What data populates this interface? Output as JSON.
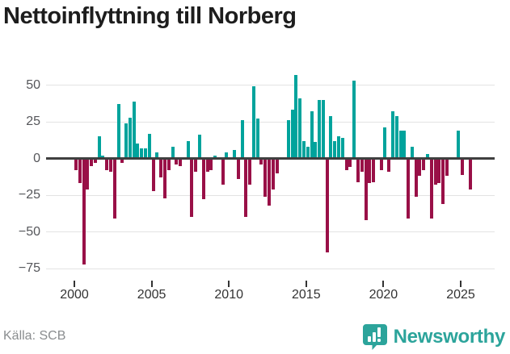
{
  "title": "Nettoinflyttning till Norberg",
  "source": "Källa: SCB",
  "brand": {
    "name": "Newsworthy",
    "color": "#2ca49b"
  },
  "chart_data": {
    "type": "bar",
    "title": "Nettoinflyttning till Norberg",
    "xlabel": "",
    "ylabel": "",
    "frequency": "quarterly",
    "start_period": "2000Q1",
    "end_period": "2025Q3",
    "x_ticks": [
      "2000",
      "2005",
      "2010",
      "2015",
      "2020",
      "2025"
    ],
    "y_ticks": [
      {
        "value": 50,
        "label": "50"
      },
      {
        "value": 25,
        "label": "25"
      },
      {
        "value": 0,
        "label": "0"
      },
      {
        "value": -25,
        "label": "−25"
      },
      {
        "value": -50,
        "label": "−50"
      },
      {
        "value": -75,
        "label": "−75"
      }
    ],
    "ylim": [
      -80,
      60
    ],
    "grid": true,
    "legend": "none",
    "colors": {
      "positive": "#00a39c",
      "negative": "#991047"
    },
    "values": [
      -8,
      -17,
      -72,
      -21,
      -5,
      -3,
      15,
      2,
      -8,
      -9,
      -41,
      37,
      -3,
      24,
      28,
      39,
      10,
      7,
      7,
      17,
      -22,
      4,
      -13,
      -27,
      -8,
      8,
      -4,
      -5,
      0,
      12,
      -40,
      -9,
      16,
      -28,
      -9,
      -8,
      2,
      0,
      -18,
      4,
      0,
      6,
      -14,
      26,
      -40,
      -18,
      49,
      27,
      -4,
      -26,
      -32,
      -21,
      -10,
      0,
      0,
      26,
      33,
      57,
      41,
      12,
      8,
      32,
      11,
      40,
      40,
      -64,
      29,
      12,
      15,
      14,
      -8,
      -6,
      53,
      -16,
      -9,
      -42,
      -17,
      -16,
      0,
      -8,
      21,
      -9,
      32,
      29,
      19,
      19,
      -41,
      8,
      -26,
      -12,
      -8,
      3,
      -41,
      -18,
      -17,
      -31,
      -12,
      0,
      0,
      19,
      -11,
      0,
      -21
    ]
  }
}
